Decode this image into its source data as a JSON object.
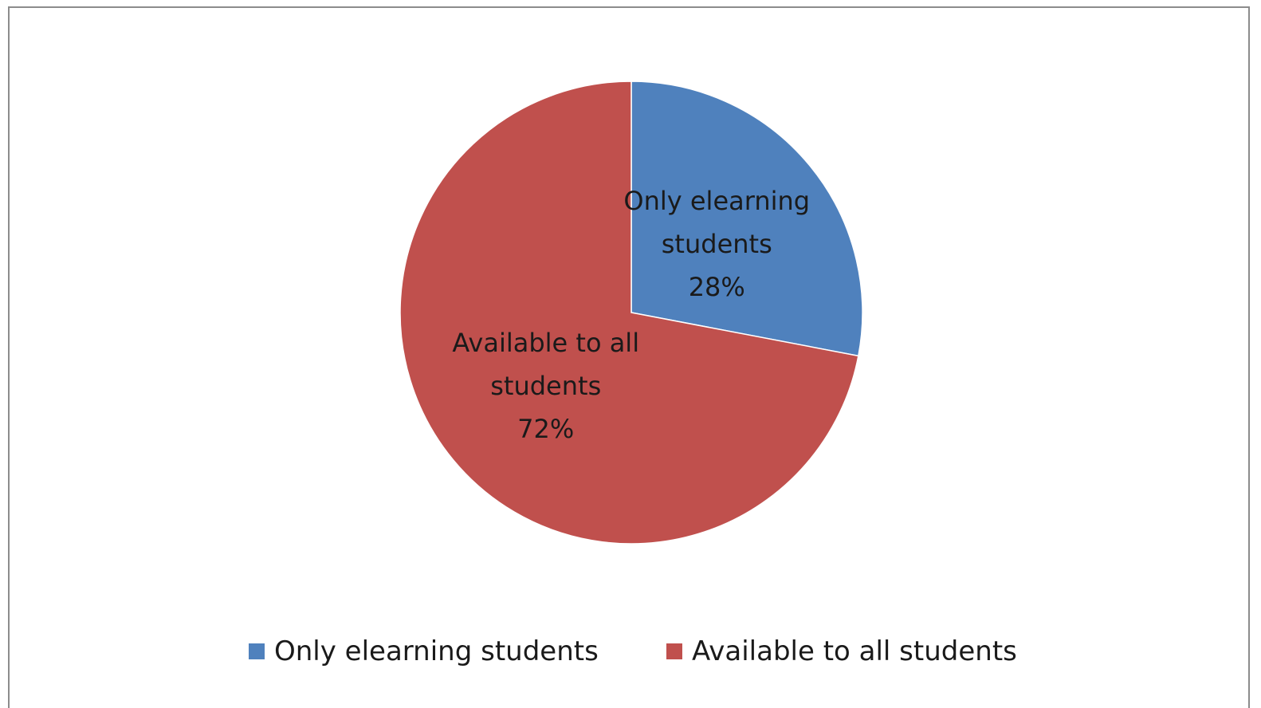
{
  "chart_data": {
    "type": "pie",
    "categories": [
      "Only elearning students",
      "Available to all students"
    ],
    "values": [
      28,
      72
    ],
    "value_labels": [
      "28%",
      "72%"
    ],
    "colors": [
      "#4f81bd",
      "#c0504d"
    ],
    "legend": "bottom"
  }
}
